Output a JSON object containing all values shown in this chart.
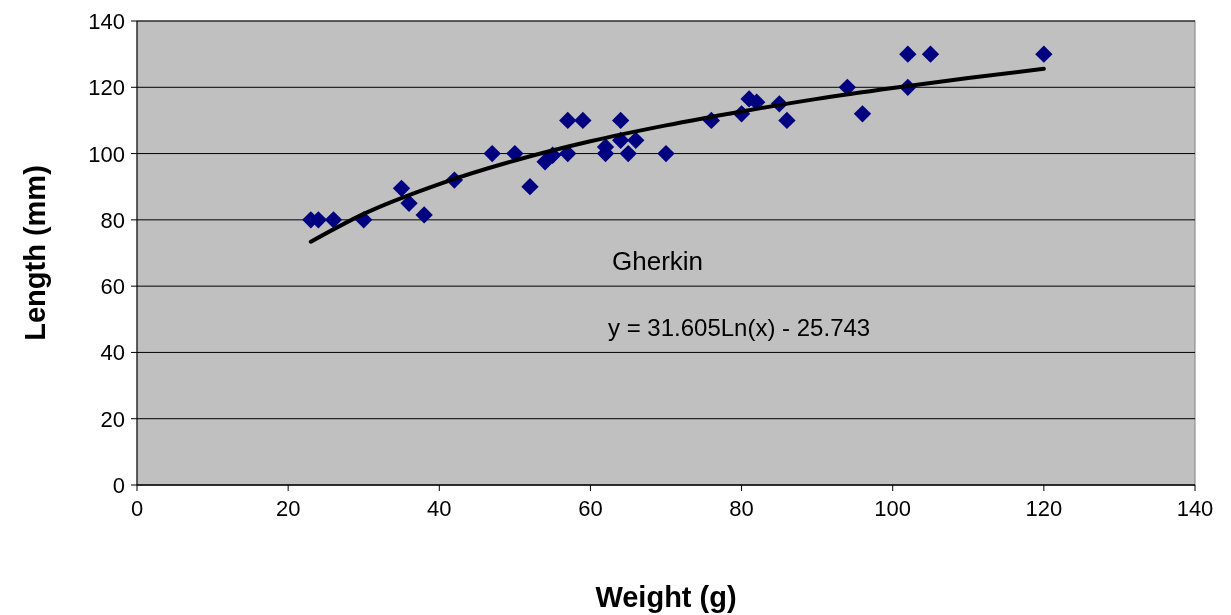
{
  "chart_data": {
    "type": "scatter",
    "xlabel": "Weight (g)",
    "ylabel": "Length (mm)",
    "xlim": [
      0,
      140
    ],
    "xticks": [
      0,
      20,
      40,
      60,
      80,
      100,
      120,
      140
    ],
    "ylim": [
      0,
      140
    ],
    "yticks": [
      0,
      20,
      40,
      60,
      80,
      100,
      120,
      140
    ],
    "grid": "y",
    "marker": "diamond",
    "annotations": [
      "Gherkin",
      "y = 31.605Ln(x) - 25.743"
    ],
    "series": [
      {
        "color": "#000080",
        "x": [
          23,
          24,
          26,
          30,
          35,
          36,
          38,
          42,
          47,
          50,
          52,
          54,
          55,
          57,
          57,
          59,
          62,
          62,
          64,
          64,
          65,
          66,
          70,
          76,
          80,
          81,
          82,
          85,
          86,
          94,
          96,
          102,
          102,
          105,
          120
        ],
        "values": [
          80,
          80,
          80,
          80,
          89.5,
          85,
          81.5,
          92,
          100,
          100,
          90,
          97.5,
          99.5,
          110,
          100,
          110,
          102,
          100,
          110,
          104,
          100,
          104,
          100,
          110,
          112,
          116.5,
          115.5,
          115,
          110,
          120,
          112,
          130,
          120,
          130,
          130
        ]
      },
      {
        "type": "line",
        "color": "#000000",
        "marker": "none",
        "x": [
          23,
          30,
          40,
          50,
          60,
          70,
          80,
          90,
          100,
          110,
          120
        ],
        "values": [
          73.4,
          81.8,
          90.8,
          97.9,
          103.7,
          108.5,
          112.7,
          116.5,
          119.8,
          122.8,
          125.6
        ]
      }
    ]
  }
}
